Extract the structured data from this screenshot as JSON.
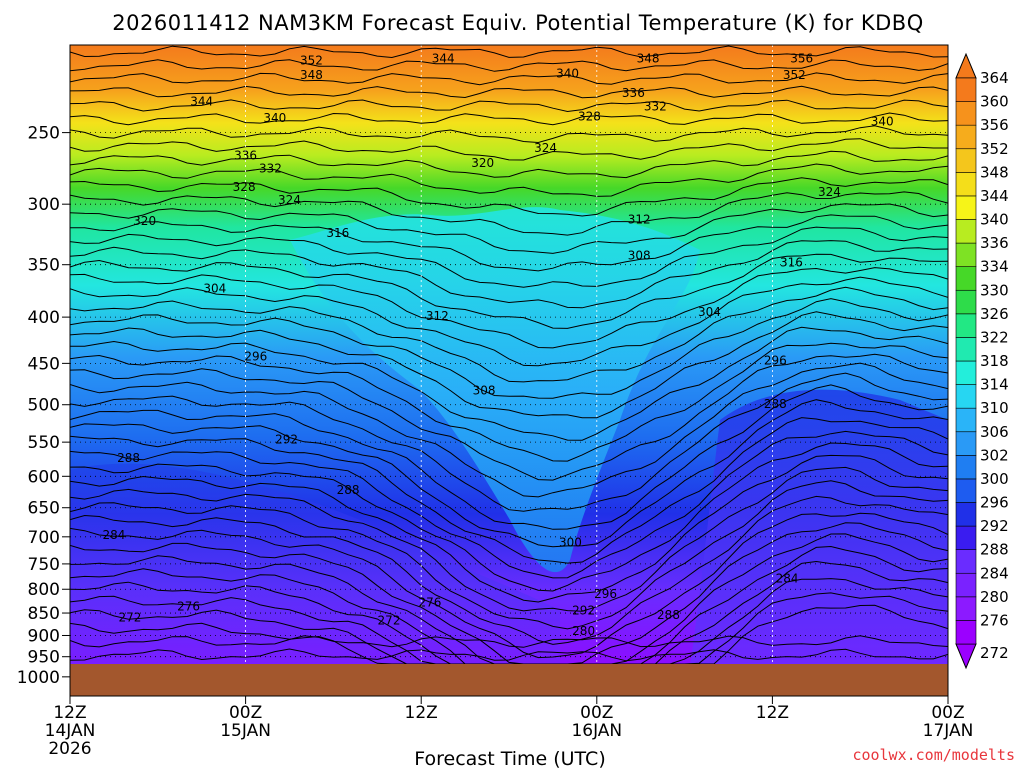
{
  "chart_data": {
    "type": "heatmap",
    "title": "2026011412 NAM3KM Forecast Equiv. Potential Temperature (K) for KDBQ",
    "xlabel": "Forecast Time (UTC)",
    "ylabel": "",
    "credit": "coolwx.com/modelts",
    "x_ticks": [
      {
        "hours": 0,
        "line1": "12Z",
        "line2": "14JAN",
        "line3": "2026"
      },
      {
        "hours": 12,
        "line1": "00Z",
        "line2": "15JAN",
        "line3": ""
      },
      {
        "hours": 24,
        "line1": "12Z",
        "line2": "",
        "line3": ""
      },
      {
        "hours": 36,
        "line1": "00Z",
        "line2": "16JAN",
        "line3": ""
      },
      {
        "hours": 48,
        "line1": "12Z",
        "line2": "",
        "line3": ""
      },
      {
        "hours": 60,
        "line1": "00Z",
        "line2": "17JAN",
        "line3": ""
      }
    ],
    "xlim_hours": [
      0,
      60
    ],
    "y_ticks": [
      250,
      300,
      350,
      400,
      450,
      500,
      550,
      600,
      650,
      700,
      750,
      800,
      850,
      900,
      950,
      1000
    ],
    "ylim_hpa": [
      200,
      1050
    ],
    "y_scale": "log-pressure",
    "grid": true,
    "colorbar": {
      "levels": [
        272,
        276,
        280,
        284,
        288,
        292,
        296,
        300,
        302,
        306,
        310,
        314,
        318,
        322,
        326,
        330,
        334,
        336,
        340,
        344,
        348,
        352,
        356,
        360,
        364
      ],
      "colors": [
        "#9b00ff",
        "#8c1aff",
        "#7a22ff",
        "#6a2cff",
        "#3a1cf0",
        "#2030e8",
        "#1e5cf0",
        "#1f7ef2",
        "#2a9af6",
        "#2ab4f8",
        "#27d6f2",
        "#23eedb",
        "#20eab0",
        "#22e884",
        "#2edc4a",
        "#46d828",
        "#7ee224",
        "#b8ec20",
        "#f6f418",
        "#f4de1a",
        "#f4c61c",
        "#f6ac1c",
        "#f6921c",
        "#f47a1c"
      ],
      "extend": "both"
    },
    "ground_color": "#a3572d",
    "contour_labels": [
      {
        "hours": 16.5,
        "hpa": 208,
        "text": "352"
      },
      {
        "hours": 25.5,
        "hpa": 207,
        "text": "344"
      },
      {
        "hours": 39.5,
        "hpa": 207,
        "text": "348"
      },
      {
        "hours": 50.0,
        "hpa": 207,
        "text": "356"
      },
      {
        "hours": 16.5,
        "hpa": 216,
        "text": "348"
      },
      {
        "hours": 34.0,
        "hpa": 215,
        "text": "340"
      },
      {
        "hours": 49.5,
        "hpa": 216,
        "text": "352"
      },
      {
        "hours": 38.5,
        "hpa": 226,
        "text": "336"
      },
      {
        "hours": 40.0,
        "hpa": 234,
        "text": "332"
      },
      {
        "hours": 9.0,
        "hpa": 231,
        "text": "344"
      },
      {
        "hours": 14.0,
        "hpa": 241,
        "text": "340"
      },
      {
        "hours": 35.5,
        "hpa": 240,
        "text": "328"
      },
      {
        "hours": 55.5,
        "hpa": 243,
        "text": "340"
      },
      {
        "hours": 32.5,
        "hpa": 260,
        "text": "324"
      },
      {
        "hours": 12.0,
        "hpa": 265,
        "text": "336"
      },
      {
        "hours": 13.7,
        "hpa": 274,
        "text": "332"
      },
      {
        "hours": 28.2,
        "hpa": 270,
        "text": "320"
      },
      {
        "hours": 11.9,
        "hpa": 287,
        "text": "328"
      },
      {
        "hours": 15.0,
        "hpa": 297,
        "text": "324"
      },
      {
        "hours": 51.9,
        "hpa": 291,
        "text": "324"
      },
      {
        "hours": 5.1,
        "hpa": 313,
        "text": "320"
      },
      {
        "hours": 38.9,
        "hpa": 312,
        "text": "312"
      },
      {
        "hours": 18.3,
        "hpa": 323,
        "text": "316"
      },
      {
        "hours": 38.9,
        "hpa": 342,
        "text": "308"
      },
      {
        "hours": 49.3,
        "hpa": 348,
        "text": "316"
      },
      {
        "hours": 9.9,
        "hpa": 372,
        "text": "304"
      },
      {
        "hours": 25.1,
        "hpa": 399,
        "text": "312"
      },
      {
        "hours": 43.7,
        "hpa": 395,
        "text": "304"
      },
      {
        "hours": 12.7,
        "hpa": 442,
        "text": "296"
      },
      {
        "hours": 48.2,
        "hpa": 447,
        "text": "296"
      },
      {
        "hours": 28.3,
        "hpa": 482,
        "text": "308"
      },
      {
        "hours": 48.2,
        "hpa": 499,
        "text": "288"
      },
      {
        "hours": 14.8,
        "hpa": 546,
        "text": "292"
      },
      {
        "hours": 4.0,
        "hpa": 573,
        "text": "288"
      },
      {
        "hours": 19.0,
        "hpa": 621,
        "text": "288"
      },
      {
        "hours": 3.0,
        "hpa": 697,
        "text": "284"
      },
      {
        "hours": 34.2,
        "hpa": 710,
        "text": "300"
      },
      {
        "hours": 49.0,
        "hpa": 778,
        "text": "284"
      },
      {
        "hours": 36.6,
        "hpa": 810,
        "text": "296"
      },
      {
        "hours": 8.1,
        "hpa": 836,
        "text": "276"
      },
      {
        "hours": 24.6,
        "hpa": 827,
        "text": "276"
      },
      {
        "hours": 35.1,
        "hpa": 845,
        "text": "292"
      },
      {
        "hours": 40.9,
        "hpa": 854,
        "text": "288"
      },
      {
        "hours": 4.1,
        "hpa": 860,
        "text": "272"
      },
      {
        "hours": 21.8,
        "hpa": 866,
        "text": "272"
      },
      {
        "hours": 35.1,
        "hpa": 890,
        "text": "280"
      }
    ]
  }
}
